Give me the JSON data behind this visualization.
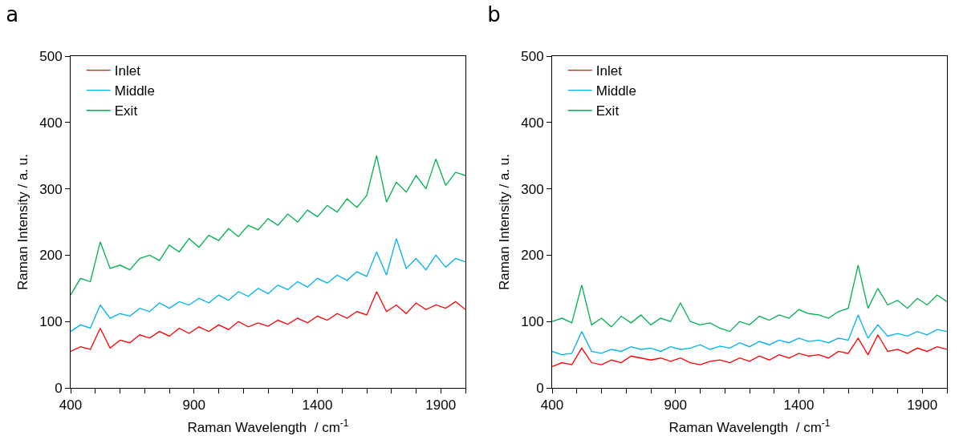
{
  "chart_data": [
    {
      "type": "line",
      "title": "a",
      "xlabel": "Raman Wavelength  / cm$^{-1}$",
      "ylabel": "Raman Intensity / a. u.",
      "legend": "top left",
      "grid": false,
      "marker": "none",
      "line_style": "solid",
      "xlim": [
        400,
        2000
      ],
      "ylim": [
        0,
        500
      ],
      "xticks": [
        400,
        {
          "value": 500,
          "label": null
        },
        {
          "value": 600,
          "label": null
        },
        {
          "value": 700,
          "label": null
        },
        {
          "value": 800,
          "label": null
        },
        900,
        {
          "value": 1000,
          "label": null
        },
        {
          "value": 1100,
          "label": null
        },
        {
          "value": 1200,
          "label": null
        },
        {
          "value": 1300,
          "label": null
        },
        1400,
        {
          "value": 1500,
          "label": null
        },
        {
          "value": 1600,
          "label": null
        },
        {
          "value": 1700,
          "label": null
        },
        {
          "value": 1800,
          "label": null
        },
        1900,
        {
          "value": 2000,
          "label": null
        }
      ],
      "yticks": [
        0,
        100,
        200,
        300,
        400,
        500
      ],
      "x": [
        400,
        440,
        480,
        520,
        560,
        600,
        640,
        680,
        720,
        760,
        800,
        840,
        880,
        920,
        960,
        1000,
        1040,
        1080,
        1120,
        1160,
        1200,
        1240,
        1280,
        1320,
        1360,
        1400,
        1440,
        1480,
        1520,
        1560,
        1600,
        1640,
        1680,
        1720,
        1760,
        1800,
        1840,
        1880,
        1920,
        1960,
        2000
      ],
      "series": [
        {
          "name": "Inlet",
          "color": "#ff0000",
          "values": [
            55,
            62,
            58,
            90,
            60,
            72,
            68,
            80,
            75,
            85,
            78,
            90,
            82,
            92,
            85,
            95,
            88,
            100,
            92,
            98,
            93,
            102,
            96,
            105,
            98,
            108,
            102,
            112,
            105,
            115,
            110,
            145,
            115,
            125,
            112,
            128,
            118,
            125,
            120,
            130,
            118
          ]
        },
        {
          "name": "Middle",
          "color": "#00b0f0",
          "values": [
            85,
            95,
            90,
            125,
            105,
            112,
            108,
            120,
            115,
            128,
            120,
            130,
            125,
            135,
            128,
            140,
            132,
            145,
            138,
            150,
            142,
            155,
            148,
            160,
            152,
            165,
            158,
            170,
            162,
            175,
            168,
            205,
            170,
            225,
            180,
            195,
            178,
            200,
            182,
            195,
            190
          ]
        },
        {
          "name": "Exit",
          "color": "#00b050",
          "values": [
            140,
            165,
            160,
            220,
            180,
            185,
            178,
            195,
            200,
            192,
            215,
            205,
            225,
            212,
            230,
            222,
            240,
            228,
            245,
            238,
            255,
            245,
            262,
            250,
            268,
            258,
            275,
            265,
            285,
            272,
            290,
            350,
            280,
            310,
            295,
            320,
            300,
            345,
            305,
            325,
            320
          ]
        }
      ]
    },
    {
      "type": "line",
      "title": "b",
      "xlabel": "Raman Wavelength  / cm$^{-1}$",
      "ylabel": "Raman Intensity / a. u.",
      "legend": "top left",
      "grid": false,
      "marker": "none",
      "line_style": "solid",
      "xlim": [
        400,
        2000
      ],
      "ylim": [
        0,
        500
      ],
      "xticks": [
        400,
        {
          "value": 500,
          "label": null
        },
        {
          "value": 600,
          "label": null
        },
        {
          "value": 700,
          "label": null
        },
        {
          "value": 800,
          "label": null
        },
        900,
        {
          "value": 1000,
          "label": null
        },
        {
          "value": 1100,
          "label": null
        },
        {
          "value": 1200,
          "label": null
        },
        {
          "value": 1300,
          "label": null
        },
        1400,
        {
          "value": 1500,
          "label": null
        },
        {
          "value": 1600,
          "label": null
        },
        {
          "value": 1700,
          "label": null
        },
        {
          "value": 1800,
          "label": null
        },
        1900,
        {
          "value": 2000,
          "label": null
        }
      ],
      "yticks": [
        0,
        100,
        200,
        300,
        400,
        500
      ],
      "x": [
        400,
        440,
        480,
        520,
        560,
        600,
        640,
        680,
        720,
        760,
        800,
        840,
        880,
        920,
        960,
        1000,
        1040,
        1080,
        1120,
        1160,
        1200,
        1240,
        1280,
        1320,
        1360,
        1400,
        1440,
        1480,
        1520,
        1560,
        1600,
        1640,
        1680,
        1720,
        1760,
        1800,
        1840,
        1880,
        1920,
        1960,
        2000
      ],
      "series": [
        {
          "name": "Inlet",
          "color": "#ff0000",
          "values": [
            32,
            38,
            35,
            60,
            38,
            35,
            42,
            38,
            48,
            45,
            42,
            45,
            40,
            45,
            38,
            35,
            40,
            42,
            38,
            45,
            40,
            48,
            42,
            50,
            45,
            52,
            48,
            50,
            45,
            55,
            52,
            75,
            50,
            80,
            55,
            58,
            52,
            60,
            55,
            62,
            58
          ]
        },
        {
          "name": "Middle",
          "color": "#00b0f0",
          "values": [
            55,
            50,
            52,
            85,
            55,
            52,
            58,
            55,
            62,
            58,
            60,
            55,
            62,
            58,
            60,
            65,
            58,
            63,
            60,
            68,
            62,
            70,
            65,
            72,
            68,
            75,
            70,
            72,
            68,
            75,
            72,
            110,
            75,
            95,
            78,
            82,
            78,
            85,
            80,
            88,
            85
          ]
        },
        {
          "name": "Exit",
          "color": "#00b050",
          "values": [
            100,
            105,
            98,
            155,
            95,
            105,
            92,
            108,
            98,
            110,
            95,
            105,
            100,
            128,
            100,
            95,
            98,
            90,
            85,
            100,
            95,
            108,
            102,
            110,
            105,
            118,
            112,
            110,
            105,
            115,
            120,
            185,
            120,
            150,
            125,
            132,
            120,
            135,
            125,
            140,
            130
          ]
        }
      ]
    }
  ]
}
